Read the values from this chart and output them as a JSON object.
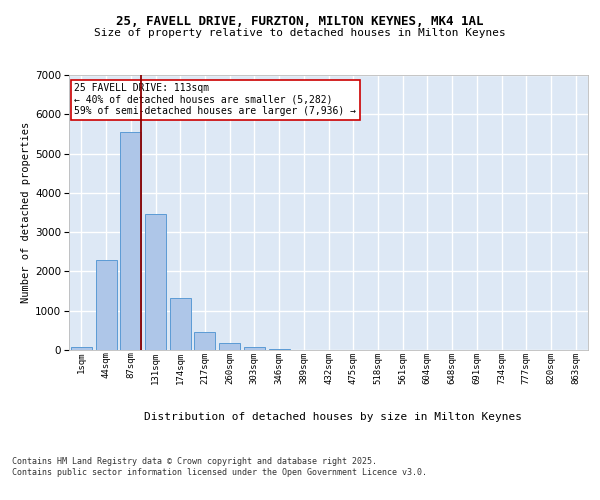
{
  "title_line1": "25, FAVELL DRIVE, FURZTON, MILTON KEYNES, MK4 1AL",
  "title_line2": "Size of property relative to detached houses in Milton Keynes",
  "xlabel": "Distribution of detached houses by size in Milton Keynes",
  "ylabel": "Number of detached properties",
  "categories": [
    "1sqm",
    "44sqm",
    "87sqm",
    "131sqm",
    "174sqm",
    "217sqm",
    "260sqm",
    "303sqm",
    "346sqm",
    "389sqm",
    "432sqm",
    "475sqm",
    "518sqm",
    "561sqm",
    "604sqm",
    "648sqm",
    "691sqm",
    "734sqm",
    "777sqm",
    "820sqm",
    "863sqm"
  ],
  "bar_values": [
    70,
    2300,
    5550,
    3470,
    1320,
    470,
    175,
    80,
    30,
    0,
    0,
    0,
    0,
    0,
    0,
    0,
    0,
    0,
    0,
    0,
    0
  ],
  "bar_color": "#aec6e8",
  "bar_edge_color": "#5b9bd5",
  "bg_color": "#dde8f5",
  "grid_color": "#ffffff",
  "vline_color": "#8b0000",
  "vline_pos": 2.4,
  "annotation_text": "25 FAVELL DRIVE: 113sqm\n← 40% of detached houses are smaller (5,282)\n59% of semi-detached houses are larger (7,936) →",
  "annotation_box_color": "#ffffff",
  "annotation_box_edge": "#cc0000",
  "annotation_fontsize": 7.0,
  "footer_text": "Contains HM Land Registry data © Crown copyright and database right 2025.\nContains public sector information licensed under the Open Government Licence v3.0.",
  "ylim": [
    0,
    7000
  ],
  "yticks": [
    0,
    1000,
    2000,
    3000,
    4000,
    5000,
    6000,
    7000
  ],
  "title1_fontsize": 9.0,
  "title2_fontsize": 8.0,
  "xlabel_fontsize": 8.0,
  "ylabel_fontsize": 7.5,
  "xtick_fontsize": 6.5,
  "ytick_fontsize": 7.5,
  "footer_fontsize": 6.0
}
